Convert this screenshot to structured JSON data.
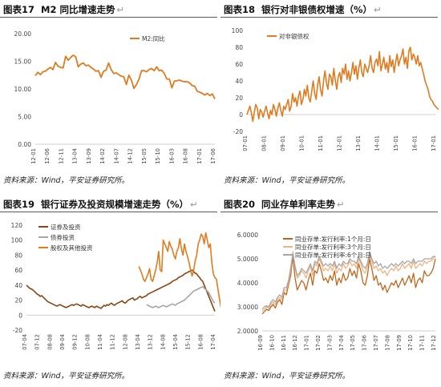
{
  "panels": [
    {
      "header_num": "图表17",
      "header_title": "M2 同比增速走势",
      "source": "资料来源：Wind，平安证券研究所。",
      "chart_data": {
        "type": "line",
        "ylim": [
          0,
          20
        ],
        "yticks": [
          "0.00",
          "5.00",
          "10.00",
          "15.00",
          "20.00"
        ],
        "xticks": [
          "12-01",
          "12-06",
          "12-11",
          "13-04",
          "13-09",
          "14-02",
          "14-07",
          "14-12",
          "15-05",
          "15-10",
          "16-03",
          "16-08",
          "17-01",
          "17-06"
        ],
        "x_count": 72,
        "series": [
          {
            "name": "M2:同比",
            "color": "#E07B20",
            "values": [
              12.4,
              13.0,
              12.6,
              13.1,
              13.2,
              13.6,
              13.9,
              13.5,
              14.8,
              14.1,
              13.9,
              13.8,
              15.9,
              15.2,
              15.7,
              16.1,
              15.8,
              14.0,
              14.5,
              14.7,
              14.2,
              14.3,
              13.9,
              13.6,
              13.2,
              13.3,
              12.1,
              13.2,
              13.4,
              14.7,
              13.5,
              12.8,
              12.9,
              12.6,
              12.3,
              12.2,
              10.8,
              12.5,
              11.6,
              10.1,
              10.8,
              11.8,
              13.3,
              13.3,
              13.1,
              13.5,
              13.7,
              13.3,
              14.0,
              13.3,
              13.4,
              12.8,
              11.8,
              11.8,
              10.2,
              11.4,
              11.5,
              11.6,
              11.4,
              11.3,
              11.3,
              11.1,
              10.6,
              10.5,
              9.6,
              9.4,
              9.2,
              8.9,
              9.2,
              8.8,
              9.1,
              8.2
            ]
          }
        ]
      }
    },
    {
      "header_num": "图表18",
      "header_title": "银行对非银债权增速（%）",
      "source": "资料来源：Wind，平安证券研究所。",
      "chart_data": {
        "type": "line",
        "ylim": [
          -20,
          100
        ],
        "yticks": [
          "-20",
          "0",
          "20",
          "40",
          "60",
          "80",
          "100"
        ],
        "xticks": [
          "07-01",
          "08-01",
          "09-01",
          "10-01",
          "11-01",
          "12-01",
          "13-01",
          "14-01",
          "15-01",
          "16-01",
          "17-01"
        ],
        "x_count": 129,
        "series": [
          {
            "name": "对非银债权",
            "color": "#E07B20",
            "values": [
              0,
              5,
              10,
              2,
              -8,
              3,
              12,
              8,
              -5,
              6,
              3,
              -3,
              4,
              10,
              2,
              -5,
              5,
              0,
              12,
              6,
              -2,
              8,
              14,
              5,
              -2,
              10,
              6,
              12,
              18,
              4,
              10,
              25,
              15,
              20,
              10,
              22,
              28,
              12,
              18,
              30,
              22,
              35,
              20,
              15,
              28,
              40,
              25,
              18,
              35,
              45,
              30,
              22,
              40,
              52,
              38,
              30,
              48,
              45,
              35,
              55,
              40,
              30,
              45,
              50,
              38,
              55,
              48,
              60,
              42,
              52,
              40,
              50,
              62,
              48,
              58,
              42,
              55,
              65,
              50,
              45,
              60,
              55,
              50,
              58,
              70,
              55,
              50,
              62,
              66,
              58,
              75,
              52,
              60,
              68,
              54,
              62,
              50,
              70,
              57,
              65,
              50,
              62,
              72,
              58,
              65,
              70,
              78,
              60,
              68,
              55,
              76,
              80,
              65,
              72,
              68,
              60,
              70,
              58,
              62,
              55,
              48,
              40,
              35,
              30,
              22,
              18,
              16,
              12,
              10,
              8,
              6
            ]
          }
        ]
      }
    },
    {
      "header_num": "图表19",
      "header_title": "银行证券及投资规模增速走势（%）",
      "source": "资料来源：Wind，平安证券研究所。",
      "chart_data": {
        "type": "line",
        "ylim": [
          -20,
          120
        ],
        "yticks": [
          "-20",
          "0",
          "20",
          "40",
          "60",
          "80",
          "100",
          "120"
        ],
        "xticks": [
          "07-04",
          "07-12",
          "08-08",
          "09-04",
          "09-12",
          "10-08",
          "11-04",
          "11-12",
          "12-08",
          "13-04",
          "13-12",
          "14-08",
          "15-04",
          "15-12",
          "16-08",
          "17-04"
        ],
        "x_count": 125,
        "series": [
          {
            "name": "证券及投资",
            "color": "#8B4513",
            "values": [
              40,
              38,
              36,
              35,
              34,
              32,
              30,
              28,
              27,
              25,
              26,
              24,
              22,
              20,
              18,
              17,
              16,
              15,
              14,
              13,
              12,
              13,
              14,
              13,
              12,
              11,
              10,
              11,
              12,
              13,
              14,
              13,
              14,
              15,
              14,
              13,
              12,
              14,
              13,
              12,
              11,
              10,
              11,
              12,
              11,
              10,
              12,
              11,
              10,
              9,
              11,
              13,
              12,
              14,
              13,
              15,
              16,
              14,
              13,
              15,
              16,
              17,
              18,
              19,
              17,
              16,
              18,
              20,
              21,
              22,
              23,
              20,
              21,
              22,
              24,
              25,
              23,
              24,
              25,
              26,
              28,
              29,
              30,
              31,
              32,
              33,
              34,
              35,
              36,
              37,
              38,
              39,
              40,
              41,
              42,
              43,
              45,
              46,
              47,
              48,
              50,
              51,
              52,
              53,
              55,
              56,
              57,
              58,
              59,
              60,
              58,
              56,
              55,
              52,
              50,
              47,
              45,
              40,
              35,
              30,
              25,
              20,
              15,
              10,
              5
            ]
          },
          {
            "name": "债券投资",
            "color": "#A6A6A6",
            "values": [
              null,
              null,
              null,
              null,
              null,
              null,
              null,
              null,
              null,
              null,
              null,
              null,
              null,
              null,
              null,
              null,
              null,
              null,
              null,
              null,
              null,
              null,
              null,
              null,
              null,
              null,
              null,
              null,
              null,
              null,
              null,
              null,
              null,
              null,
              null,
              null,
              null,
              null,
              null,
              null,
              null,
              null,
              null,
              null,
              null,
              null,
              null,
              null,
              null,
              null,
              null,
              null,
              null,
              null,
              null,
              null,
              null,
              null,
              null,
              null,
              null,
              null,
              null,
              null,
              null,
              null,
              null,
              null,
              null,
              null,
              null,
              null,
              null,
              null,
              null,
              null,
              null,
              null,
              null,
              14,
              13,
              12,
              11,
              10,
              11,
              12,
              11,
              10,
              11,
              12,
              13,
              12,
              11,
              12,
              13,
              14,
              15,
              14,
              13,
              15,
              16,
              17,
              18,
              19,
              20,
              22,
              24,
              26,
              28,
              30,
              32,
              33,
              34,
              35,
              36,
              37,
              38,
              36,
              34,
              32,
              30,
              26,
              22,
              18,
              16
            ]
          },
          {
            "name": "股权及其他投资",
            "color": "#E07B20",
            "values": [
              null,
              null,
              null,
              null,
              null,
              null,
              null,
              null,
              null,
              null,
              null,
              null,
              null,
              null,
              null,
              null,
              null,
              null,
              null,
              null,
              null,
              null,
              null,
              null,
              null,
              null,
              null,
              null,
              null,
              null,
              null,
              null,
              null,
              null,
              null,
              null,
              null,
              null,
              null,
              null,
              null,
              null,
              null,
              null,
              null,
              null,
              null,
              null,
              null,
              null,
              null,
              null,
              null,
              null,
              null,
              null,
              null,
              null,
              null,
              null,
              null,
              null,
              null,
              null,
              null,
              null,
              null,
              null,
              null,
              null,
              null,
              null,
              null,
              null,
              65,
              60,
              55,
              48,
              45,
              50,
              55,
              62,
              48,
              45,
              52,
              60,
              70,
              85,
              60,
              58,
              100,
              95,
              90,
              85,
              98,
              92,
              88,
              80,
              75,
              85,
              90,
              102,
              88,
              80,
              95,
              85,
              78,
              70,
              60,
              52,
              60,
              72,
              80,
              95,
              100,
              108,
              105,
              95,
              110,
              100,
              90,
              95,
              70,
              55,
              50,
              48,
              35,
              22,
              10
            ]
          }
        ]
      }
    },
    {
      "header_num": "图表20",
      "header_title": "同业存单利率走势",
      "source": "资料来源：Wind，平安证券研究所。",
      "chart_data": {
        "type": "line",
        "ylim": [
          2.0,
          6.0
        ],
        "yticks": [
          "2.0000",
          "3.0000",
          "4.0000",
          "5.0000",
          "6.0000"
        ],
        "xticks": [
          "16-09",
          "16-10",
          "16-11",
          "16-12",
          "17-01",
          "17-02",
          "17-03",
          "17-04",
          "17-05",
          "17-06",
          "17-07",
          "17-08",
          "17-09",
          "17-10",
          "17-11",
          "17-12"
        ],
        "x_count": 80,
        "series": [
          {
            "name": "同业存单:发行利率:1个月:日",
            "color": "#C0661C",
            "values": [
              2.7,
              2.8,
              2.9,
              2.85,
              3.0,
              3.1,
              2.95,
              3.2,
              3.3,
              3.1,
              3.6,
              3.5,
              3.9,
              4.3,
              5.1,
              4.2,
              3.7,
              3.9,
              4.1,
              4.0,
              3.7,
              4.1,
              4.4,
              3.9,
              4.5,
              4.4,
              4.8,
              4.5,
              4.1,
              4.2,
              4.0,
              4.3,
              4.1,
              4.5,
              3.9,
              4.2,
              4.0,
              4.4,
              4.1,
              4.2,
              4.6,
              4.3,
              4.5,
              4.2,
              4.8,
              4.5,
              4.0,
              3.9,
              4.3,
              5.0,
              4.6,
              4.1,
              4.3,
              3.9,
              4.0,
              3.7,
              3.9,
              3.6,
              3.8,
              4.0,
              3.9,
              4.1,
              3.8,
              4.0,
              4.2,
              3.9,
              4.1,
              4.3,
              4.0,
              4.4,
              3.8,
              4.1,
              4.2,
              4.0,
              4.5,
              4.3,
              4.3,
              4.4,
              4.6,
              5.0
            ]
          },
          {
            "name": "同业存单:发行利率:3个月:日",
            "color": "#F2B27D",
            "values": [
              2.8,
              2.9,
              3.0,
              2.95,
              3.1,
              3.2,
              3.1,
              3.3,
              3.4,
              3.3,
              3.7,
              3.7,
              4.0,
              4.5,
              5.3,
              4.6,
              4.2,
              4.3,
              4.5,
              4.4,
              4.2,
              4.5,
              4.7,
              4.3,
              4.8,
              4.7,
              5.0,
              4.8,
              4.5,
              4.6,
              4.5,
              4.7,
              4.5,
              4.8,
              4.4,
              4.6,
              4.5,
              4.8,
              4.6,
              4.7,
              4.9,
              4.7,
              4.8,
              4.6,
              5.0,
              4.8,
              4.5,
              4.4,
              4.7,
              5.2,
              4.9,
              4.6,
              4.7,
              4.5,
              4.6,
              4.4,
              4.5,
              4.3,
              4.5,
              4.6,
              4.5,
              4.7,
              4.5,
              4.6,
              4.8,
              4.6,
              4.7,
              4.8,
              4.6,
              4.9,
              4.6,
              4.7,
              4.8,
              4.7,
              4.9,
              4.8,
              4.9,
              4.9,
              5.0,
              5.1
            ]
          },
          {
            "name": "同业存单:发行利率:6个月:日",
            "color": "#A6A6A6",
            "values": [
              2.9,
              3.0,
              3.05,
              3.0,
              3.2,
              3.3,
              3.2,
              3.4,
              3.5,
              3.4,
              3.8,
              3.8,
              4.1,
              4.6,
              5.2,
              4.7,
              4.3,
              4.4,
              4.6,
              4.5,
              4.4,
              4.6,
              4.8,
              4.5,
              4.9,
              4.8,
              5.1,
              4.9,
              4.7,
              4.8,
              4.7,
              4.8,
              4.7,
              4.9,
              4.6,
              4.8,
              4.7,
              4.9,
              4.8,
              4.8,
              5.0,
              4.9,
              4.9,
              4.8,
              5.1,
              4.9,
              4.7,
              4.6,
              4.8,
              5.3,
              5.0,
              4.8,
              4.9,
              4.7,
              4.8,
              4.6,
              4.7,
              4.6,
              4.7,
              4.8,
              4.7,
              4.8,
              4.7,
              4.8,
              4.9,
              4.8,
              4.9,
              4.9,
              4.8,
              5.0,
              4.8,
              4.9,
              4.9,
              4.9,
              5.0,
              5.0,
              5.0,
              5.0,
              5.1,
              5.1
            ]
          }
        ]
      }
    }
  ]
}
